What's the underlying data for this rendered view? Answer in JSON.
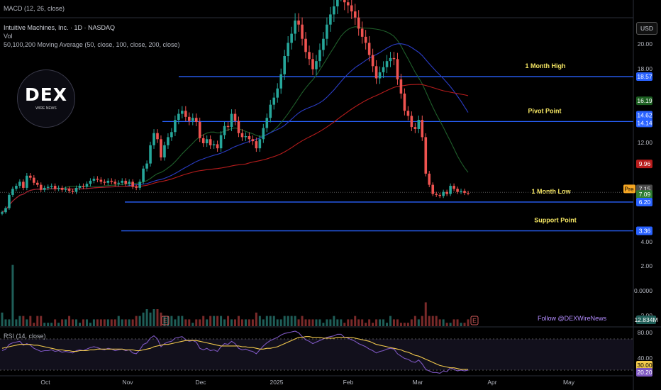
{
  "header": {
    "macd_label": "MACD (12, 26, close)",
    "symbol_label": "Intuitive Machines, Inc. · 1D · NASDAQ",
    "vol_label": "Vol",
    "ma_label": "50,100,200 Moving Average (50, close, 100, close, 200, close)",
    "rsi_label": "RSI (14, close)"
  },
  "currency_button": "USD",
  "logo": {
    "text": "DEX",
    "sub": "WIRE NEWS"
  },
  "watermark": "Follow @DEXWireNews",
  "colors": {
    "up": "#26a69a",
    "down": "#ef5350",
    "ma50": "#1f5e2a",
    "ma100": "#2a3cc4",
    "ma200": "#b71c1c",
    "level": "#2962ff",
    "annotation": "#f5e663",
    "rsi": "#7e57c2",
    "rsi_ma": "#f2c94c"
  },
  "chart_data": [
    {
      "type": "candlestick",
      "title": "Intuitive Machines, Inc. · 1D · NASDAQ",
      "ylim": [
        3.0,
        27.0
      ],
      "price_axis_ticks": [
        "20.00",
        "18.00",
        "12.00",
        "4.00",
        "2.00",
        "0.0000",
        "−2.00"
      ],
      "x_ticks": [
        "Oct",
        "Nov",
        "Dec",
        "2025",
        "Feb",
        "Mar",
        "Apr",
        "May"
      ],
      "levels": [
        {
          "name": "1 Month High",
          "value": 18.57
        },
        {
          "name": "Pivot Point",
          "value": 14.14
        },
        {
          "name": "1 Month Low",
          "value": 6.2
        },
        {
          "name": "Support Point",
          "value": 3.36
        }
      ],
      "price_tags": [
        {
          "label": "18.57",
          "value": 18.57
        },
        {
          "label": "16.19",
          "value": 16.19
        },
        {
          "label": "14.62",
          "value": 14.62
        },
        {
          "label": "14.14",
          "value": 14.14
        },
        {
          "label": "9.96",
          "value": 9.96
        },
        {
          "label": "7.15",
          "value": 7.15,
          "prefix": "Pre"
        },
        {
          "label": "7.09",
          "value": 7.09
        },
        {
          "label": "6.20",
          "value": 6.2
        },
        {
          "label": "3.36",
          "value": 3.36
        }
      ],
      "last_close": 7.09,
      "premarket": 7.15,
      "series": [
        {
          "name": "MA 50",
          "end_value": 16.19
        },
        {
          "name": "MA 100",
          "end_value": 14.62
        },
        {
          "name": "MA 200",
          "end_value": 9.96
        }
      ],
      "closes": [
        5.2,
        5.6,
        6.9,
        7.5,
        7.8,
        8.2,
        7.6,
        8.8,
        8.6,
        8.1,
        7.9,
        7.4,
        7.6,
        7.7,
        7.8,
        7.5,
        7.6,
        7.4,
        7.5,
        7.3,
        7.2,
        7.6,
        7.8,
        7.7,
        8.0,
        8.3,
        8.5,
        8.4,
        8.2,
        8.1,
        8.3,
        8.2,
        8.0,
        8.1,
        8.3,
        8.0,
        8.2,
        7.7,
        7.6,
        8.2,
        9.5,
        10.0,
        11.8,
        13.0,
        12.4,
        10.6,
        11.8,
        12.6,
        13.1,
        14.3,
        14.9,
        15.2,
        14.6,
        14.2,
        14.5,
        14.1,
        12.5,
        12.0,
        12.4,
        11.8,
        11.9,
        11.5,
        12.8,
        13.7,
        13.6,
        14.9,
        14.2,
        13.0,
        12.6,
        12.7,
        12.4,
        12.2,
        11.5,
        12.4,
        13.5,
        14.5,
        15.8,
        16.5,
        17.4,
        18.8,
        20.6,
        21.9,
        22.8,
        24.1,
        23.7,
        22.3,
        21.0,
        20.3,
        19.3,
        20.1,
        21.2,
        22.3,
        23.7,
        24.7,
        25.5,
        26.8,
        26.9,
        25.9,
        25.6,
        25.0,
        24.4,
        23.3,
        22.5,
        21.9,
        20.7,
        19.6,
        18.4,
        19.0,
        19.5,
        20.1,
        20.4,
        20.3,
        18.3,
        16.9,
        15.2,
        14.7,
        13.6,
        13.4,
        14.3,
        12.6,
        9.0,
        7.9,
        7.0,
        6.9,
        6.8,
        7.2,
        7.0,
        7.8,
        7.5,
        7.2,
        7.3,
        7.1,
        7.09
      ],
      "volume_axis_label": "12.834M",
      "volumes": [
        0.4,
        0.2,
        0.2,
        0.4,
        0.2,
        0.3,
        0.3,
        0.2,
        0.3,
        0.1,
        0.3,
        0.3,
        0.1,
        0.1,
        0.1,
        0.2,
        0.1,
        0.2,
        0.2,
        0.3,
        0.2,
        0.2,
        0.1,
        0.2,
        0.2,
        0.1,
        0.2,
        0.2,
        0.2,
        0.2,
        0.2,
        0.2,
        0.2,
        0.3,
        0.2,
        0.2,
        0.2,
        0.2,
        0.3,
        0.3,
        0.4,
        0.5,
        0.4,
        0.5,
        0.5,
        0.4,
        0.3,
        0.3,
        0.3,
        0.2,
        0.3,
        0.3,
        0.2,
        0.2,
        0.1,
        0.2,
        0.2,
        0.3,
        0.2,
        0.3,
        0.3,
        0.3,
        0.3,
        0.2,
        0.3,
        0.2,
        0.2,
        0.3,
        0.2,
        0.2,
        0.2,
        0.2,
        0.4,
        0.3,
        0.2,
        0.3,
        0.3,
        0.3,
        0.2,
        0.2,
        0.3,
        0.3,
        0.3,
        0.3,
        0.2,
        0.3,
        0.2,
        0.2,
        0.2,
        0.2,
        0.2,
        0.1,
        0.2,
        0.2,
        0.3,
        0.2,
        0.2,
        0.1,
        0.2,
        0.2,
        0.3,
        0.2,
        0.2,
        0.1,
        0.2,
        0.1,
        0.2,
        0.2,
        0.2,
        0.1,
        0.3,
        0.2,
        0.2,
        0.1,
        0.1,
        0.1,
        0.2,
        0.3,
        0.2,
        0.3,
        0.5,
        0.3,
        0.3,
        0.3,
        0.2,
        0.2,
        0.1,
        0.1,
        0.2,
        0.2,
        0.1,
        0.1,
        0.2
      ]
    },
    {
      "type": "line",
      "title": "RSI (14, close)",
      "ylim": [
        20,
        80
      ],
      "ticks": [
        "80.00",
        "40.00",
        "30.00",
        "20.20"
      ],
      "series": [
        {
          "name": "RSI",
          "values": [
            55,
            57,
            63,
            65,
            66,
            67,
            62,
            64,
            62,
            58,
            56,
            54,
            55,
            55,
            56,
            54,
            55,
            53,
            54,
            53,
            52,
            55,
            56,
            55,
            57,
            59,
            60,
            59,
            57,
            56,
            58,
            57,
            55,
            56,
            57,
            55,
            56,
            52,
            51,
            56,
            63,
            65,
            71,
            74,
            70,
            60,
            64,
            66,
            67,
            71,
            72,
            73,
            69,
            67,
            68,
            66,
            58,
            56,
            58,
            55,
            56,
            54,
            60,
            64,
            63,
            67,
            64,
            58,
            56,
            57,
            55,
            54,
            51,
            56,
            61,
            65,
            68,
            70,
            72,
            75,
            77,
            78,
            79,
            80,
            78,
            73,
            69,
            67,
            64,
            66,
            68,
            70,
            72,
            73,
            74,
            76,
            76,
            72,
            71,
            69,
            67,
            64,
            62,
            60,
            57,
            55,
            52,
            54,
            55,
            57,
            58,
            57,
            51,
            48,
            45,
            44,
            41,
            40,
            43,
            38,
            31,
            29,
            27,
            27,
            26,
            29,
            28,
            33,
            31,
            29,
            30,
            29,
            30
          ]
        },
        {
          "name": "RSI MA",
          "values": [
            58,
            59,
            60,
            61,
            62,
            63,
            63,
            63,
            63,
            62,
            62,
            61,
            60,
            59,
            58,
            57,
            56,
            56,
            55,
            55,
            54,
            54,
            55,
            55,
            55,
            56,
            56,
            57,
            57,
            57,
            57,
            57,
            57,
            57,
            57,
            56,
            56,
            56,
            55,
            55,
            56,
            57,
            58,
            60,
            61,
            62,
            63,
            63,
            64,
            65,
            66,
            67,
            68,
            68,
            68,
            68,
            67,
            66,
            65,
            64,
            63,
            62,
            61,
            61,
            61,
            61,
            61,
            61,
            60,
            60,
            59,
            59,
            58,
            57,
            57,
            58,
            58,
            59,
            60,
            62,
            64,
            66,
            68,
            70,
            72,
            72,
            73,
            73,
            72,
            72,
            72,
            71,
            71,
            71,
            71,
            72,
            72,
            72,
            72,
            72,
            71,
            70,
            69,
            68,
            67,
            65,
            63,
            62,
            61,
            60,
            59,
            58,
            57,
            56,
            54,
            53,
            51,
            49,
            48,
            46,
            44,
            42,
            40,
            38,
            36,
            35,
            34,
            33,
            33,
            32,
            31,
            31,
            31
          ]
        }
      ]
    }
  ]
}
